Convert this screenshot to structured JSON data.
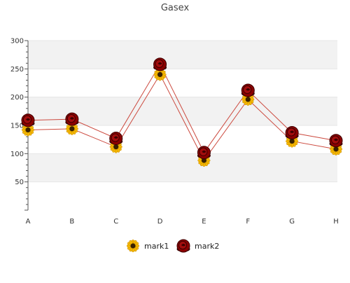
{
  "chart_data": {
    "type": "line",
    "title": "Gasex",
    "xlabel": "",
    "ylabel": "",
    "categories": [
      "A",
      "B",
      "C",
      "D",
      "E",
      "F",
      "G",
      "H"
    ],
    "ylim": [
      0,
      300
    ],
    "yticks": [
      50,
      100,
      150,
      200,
      250,
      300
    ],
    "grid": true,
    "legend_position": "bottom",
    "series": [
      {
        "name": "mark1",
        "marker": "sunflower-icon",
        "color": "#cc4a3f",
        "values": [
          142,
          144,
          112,
          240,
          88,
          196,
          122,
          108
        ]
      },
      {
        "name": "mark2",
        "marker": "rose-icon",
        "color": "#cc4a3f",
        "values": [
          159,
          161,
          127,
          258,
          102,
          212,
          137,
          123
        ]
      }
    ],
    "colors": {
      "band": "#f2f2f2",
      "axis": "#555555",
      "line": "#cc4a3f",
      "sunflower_petal": "#f5b800",
      "sunflower_center": "#3a2200",
      "rose": "#8b0000",
      "rose_dark": "#3d0000"
    }
  }
}
